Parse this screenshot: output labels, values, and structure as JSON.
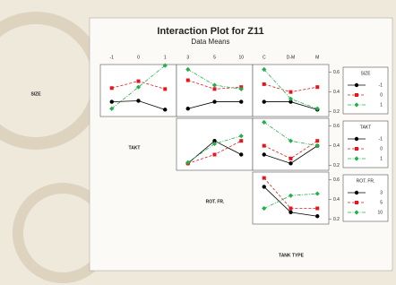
{
  "chart_data": {
    "type": "interaction-matrix",
    "title": "Interaction Plot for Z11",
    "subtitle": "Data Means",
    "factors": [
      {
        "name": "SIZE",
        "levels": [
          "-1",
          "0",
          "1"
        ]
      },
      {
        "name": "TAKT",
        "levels": [
          "-1",
          "0",
          "1"
        ]
      },
      {
        "name": "ROT. FR.",
        "levels": [
          "3",
          "5",
          "10"
        ]
      },
      {
        "name": "TANK TYPE",
        "levels": [
          "C",
          "D-M",
          "M"
        ]
      }
    ],
    "colors": [
      "#000000",
      "#e8141b",
      "#22b04b"
    ],
    "ylim": [
      0.15,
      0.68
    ],
    "yticks": [
      0.2,
      0.4,
      0.6
    ],
    "panels": [
      [
        {
          "series": [
            [
              0.3,
              0.31,
              0.22
            ],
            [
              0.44,
              0.51,
              0.43
            ],
            [
              0.23,
              0.45,
              0.67
            ]
          ]
        },
        {
          "series": [
            [
              0.23,
              0.3,
              0.3
            ],
            [
              0.52,
              0.43,
              0.45
            ],
            [
              0.63,
              0.47,
              0.43
            ]
          ]
        },
        {
          "series": [
            [
              0.3,
              0.3,
              0.22
            ],
            [
              0.48,
              0.4,
              0.45
            ],
            [
              0.63,
              0.33,
              0.23
            ]
          ]
        }
      ],
      [
        {
          "series": [
            [
              0.22,
              0.45,
              0.31
            ],
            [
              0.22,
              0.31,
              0.45
            ],
            [
              0.23,
              0.42,
              0.5
            ]
          ]
        },
        {
          "series": [
            [
              0.31,
              0.22,
              0.4
            ],
            [
              0.4,
              0.27,
              0.45
            ],
            [
              0.64,
              0.45,
              0.4
            ]
          ]
        }
      ],
      [
        {
          "series": [
            [
              0.53,
              0.27,
              0.23
            ],
            [
              0.62,
              0.31,
              0.31
            ],
            [
              0.31,
              0.44,
              0.46
            ]
          ]
        }
      ]
    ]
  }
}
